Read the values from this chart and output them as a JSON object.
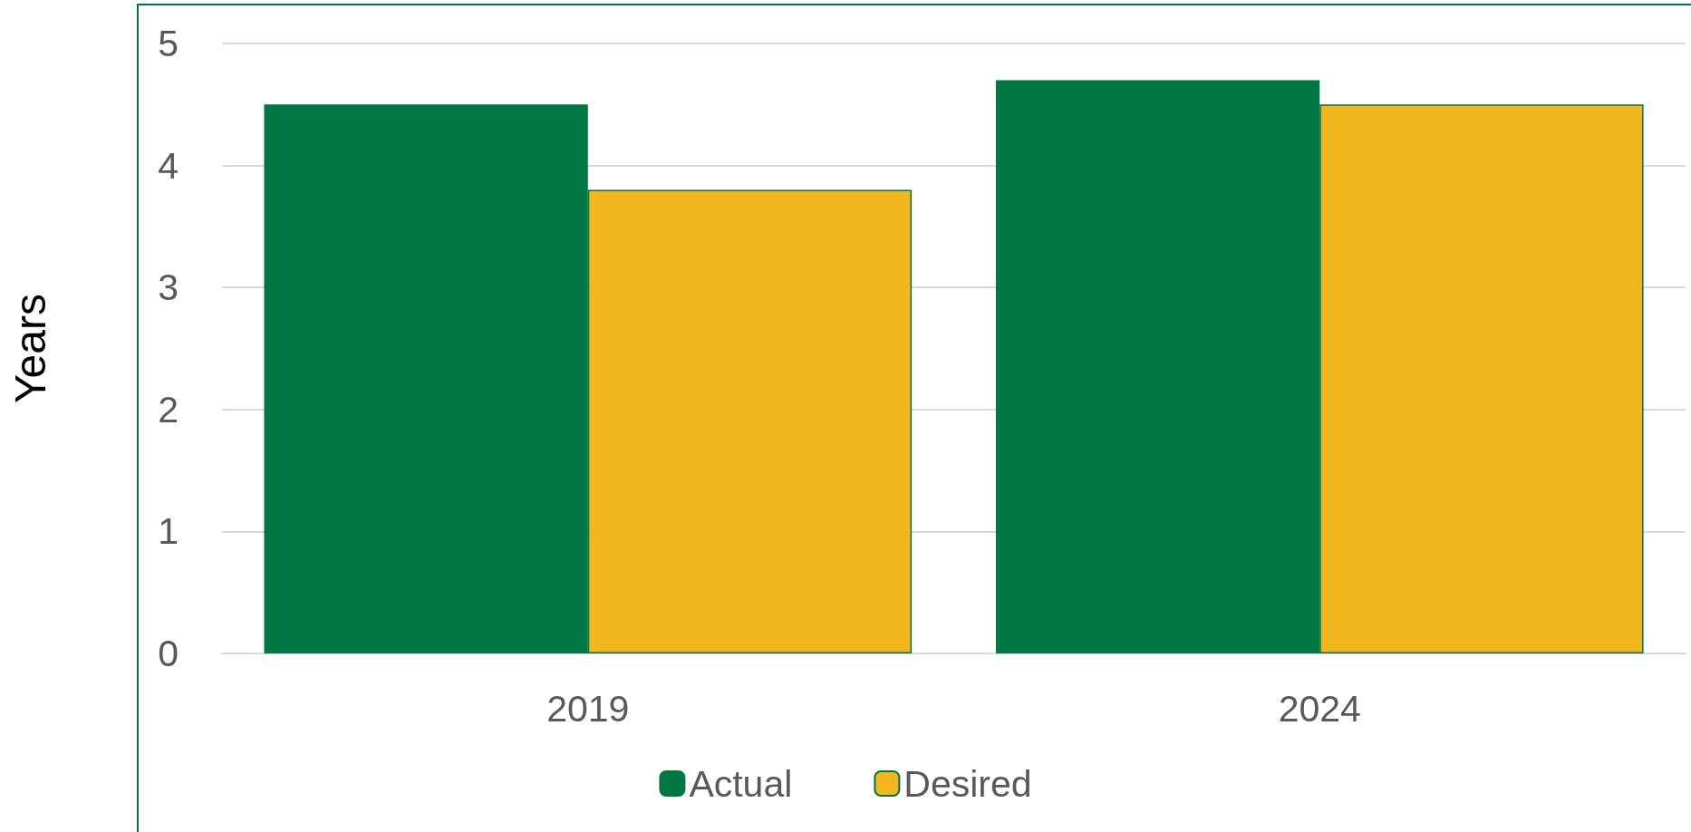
{
  "chart_data": {
    "type": "bar",
    "ylabel": "Years",
    "categories": [
      "2019",
      "2024"
    ],
    "series": [
      {
        "name": "Actual",
        "color": "#007643",
        "values": [
          4.5,
          4.7
        ]
      },
      {
        "name": "Desired",
        "color": "#f2b61e",
        "values": [
          3.8,
          4.5
        ]
      }
    ],
    "ylim": [
      0,
      5
    ],
    "yticks": [
      0,
      1,
      2,
      3,
      4,
      5
    ],
    "grid": "y",
    "legend": "bottom"
  }
}
